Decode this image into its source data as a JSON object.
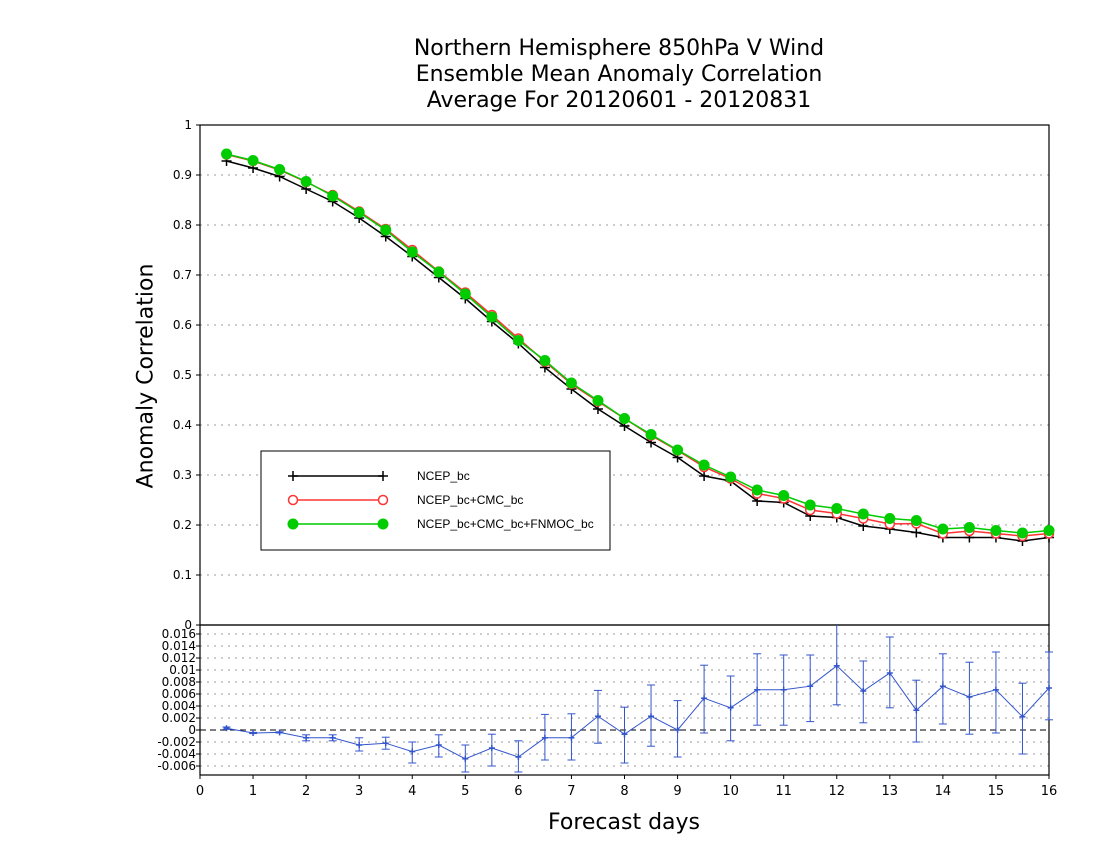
{
  "title": {
    "line1": "Northern Hemisphere 850hPa V Wind",
    "line2": "Ensemble Mean Anomaly Correlation",
    "line3": "Average For 20120601 - 20120831"
  },
  "axes": {
    "ylabel": "Anomaly Correlation",
    "xlabel": "Forecast days"
  },
  "colors": {
    "ncep": "#000000",
    "cmc": "#ff3333",
    "fnmoc": "#00cc00",
    "diff": "#3355cc",
    "grid": "#999999"
  },
  "chart_data": [
    {
      "type": "line",
      "title": "Northern Hemisphere 850hPa V Wind Ensemble Mean Anomaly Correlation Average For 20120601 - 20120831",
      "xlabel": "",
      "ylabel": "Anomaly Correlation",
      "xlim": [
        0,
        16
      ],
      "ylim": [
        0,
        1
      ],
      "yticks": [
        "0",
        "0.1",
        "0.2",
        "0.3",
        "0.4",
        "0.5",
        "0.6",
        "0.7",
        "0.8",
        "0.9",
        "1"
      ],
      "grid": true,
      "legend_position": "lower-left",
      "x": [
        0.5,
        1,
        1.5,
        2,
        2.5,
        3,
        3.5,
        4,
        4.5,
        5,
        5.5,
        6,
        6.5,
        7,
        7.5,
        8,
        8.5,
        9,
        9.5,
        10,
        10.5,
        11,
        11.5,
        12,
        12.5,
        13,
        13.5,
        14,
        14.5,
        15,
        15.5,
        16
      ],
      "series": [
        {
          "name": "NCEP_bc",
          "color": "#000000",
          "marker": "plus",
          "values": [
            0.928,
            0.914,
            0.897,
            0.872,
            0.847,
            0.814,
            0.777,
            0.737,
            0.695,
            0.653,
            0.607,
            0.563,
            0.515,
            0.472,
            0.432,
            0.398,
            0.365,
            0.335,
            0.298,
            0.288,
            0.248,
            0.245,
            0.218,
            0.215,
            0.198,
            0.192,
            0.185,
            0.175,
            0.175,
            0.175,
            0.168,
            0.175
          ]
        },
        {
          "name": "NCEP_bc+CMC_bc",
          "color": "#ff3333",
          "marker": "open-circle",
          "values": [
            0.941,
            0.928,
            0.91,
            0.886,
            0.86,
            0.827,
            0.792,
            0.75,
            0.707,
            0.665,
            0.62,
            0.573,
            0.527,
            0.482,
            0.447,
            0.413,
            0.379,
            0.349,
            0.316,
            0.293,
            0.263,
            0.253,
            0.23,
            0.223,
            0.213,
            0.202,
            0.203,
            0.183,
            0.188,
            0.183,
            0.178,
            0.183
          ]
        },
        {
          "name": "NCEP_bc+CMC_bc+FNMOC_bc",
          "color": "#00cc00",
          "marker": "filled-circle",
          "values": [
            0.942,
            0.929,
            0.911,
            0.887,
            0.858,
            0.825,
            0.79,
            0.746,
            0.706,
            0.662,
            0.616,
            0.569,
            0.529,
            0.484,
            0.449,
            0.413,
            0.381,
            0.35,
            0.32,
            0.296,
            0.27,
            0.259,
            0.24,
            0.233,
            0.222,
            0.213,
            0.209,
            0.192,
            0.195,
            0.189,
            0.184,
            0.189
          ]
        }
      ]
    },
    {
      "type": "line",
      "title": "",
      "xlabel": "Forecast days",
      "ylabel": "",
      "xlim": [
        0,
        16
      ],
      "ylim": [
        -0.0075,
        0.0175
      ],
      "xticks": [
        "0",
        "1",
        "2",
        "3",
        "4",
        "5",
        "6",
        "7",
        "8",
        "9",
        "10",
        "11",
        "12",
        "13",
        "14",
        "15",
        "16"
      ],
      "yticks": [
        "0.016",
        "0.014",
        "0.012",
        "0.01",
        "0.008",
        "0.006",
        "0.004",
        "0.002",
        "0",
        "-0.002",
        "-0.004",
        "-0.006"
      ],
      "grid": true,
      "x": [
        0.5,
        1,
        1.5,
        2,
        2.5,
        3,
        3.5,
        4,
        4.5,
        5,
        5.5,
        6,
        6.5,
        7,
        7.5,
        8,
        8.5,
        9,
        9.5,
        10,
        10.5,
        11,
        11.5,
        12,
        12.5,
        13,
        13.5,
        14,
        14.5,
        15,
        15.5,
        16
      ],
      "series": [
        {
          "name": "",
          "color": "#3355cc",
          "marker": "plus",
          "values": [
            0.0003,
            -0.0005,
            -0.0004,
            -0.0013,
            -0.0013,
            -0.0025,
            -0.0022,
            -0.0036,
            -0.0025,
            -0.0048,
            -0.003,
            -0.0045,
            -0.0013,
            -0.0013,
            0.0023,
            -0.0007,
            0.0023,
            0.0,
            0.0053,
            0.0037,
            0.0067,
            0.0067,
            0.0073,
            0.0107,
            0.0065,
            0.0095,
            0.0033,
            0.0073,
            0.0055,
            0.0067,
            0.0022,
            0.007
          ],
          "error_low": [
            0.0001,
            -0.0006,
            -0.0005,
            -0.0018,
            -0.0018,
            -0.0035,
            -0.0032,
            -0.0055,
            -0.0045,
            -0.007,
            -0.006,
            -0.007,
            -0.005,
            -0.005,
            -0.0022,
            -0.0055,
            -0.0027,
            -0.0045,
            -0.0005,
            -0.0018,
            0.0008,
            0.0008,
            0.0014,
            0.0042,
            0.0012,
            0.0037,
            -0.002,
            0.001,
            -0.0007,
            -0.0005,
            -0.004,
            0.0017
          ],
          "error_high": [
            0.0005,
            -0.0004,
            -0.0003,
            -0.0008,
            -0.0008,
            -0.0013,
            -0.0012,
            -0.002,
            -0.0008,
            -0.0025,
            -0.0007,
            -0.0018,
            0.0026,
            0.0027,
            0.0066,
            0.0038,
            0.0075,
            0.0049,
            0.0108,
            0.009,
            0.0127,
            0.0125,
            0.0125,
            0.0175,
            0.0115,
            0.0155,
            0.0083,
            0.0127,
            0.0113,
            0.013,
            0.0078,
            0.013
          ]
        }
      ]
    }
  ]
}
